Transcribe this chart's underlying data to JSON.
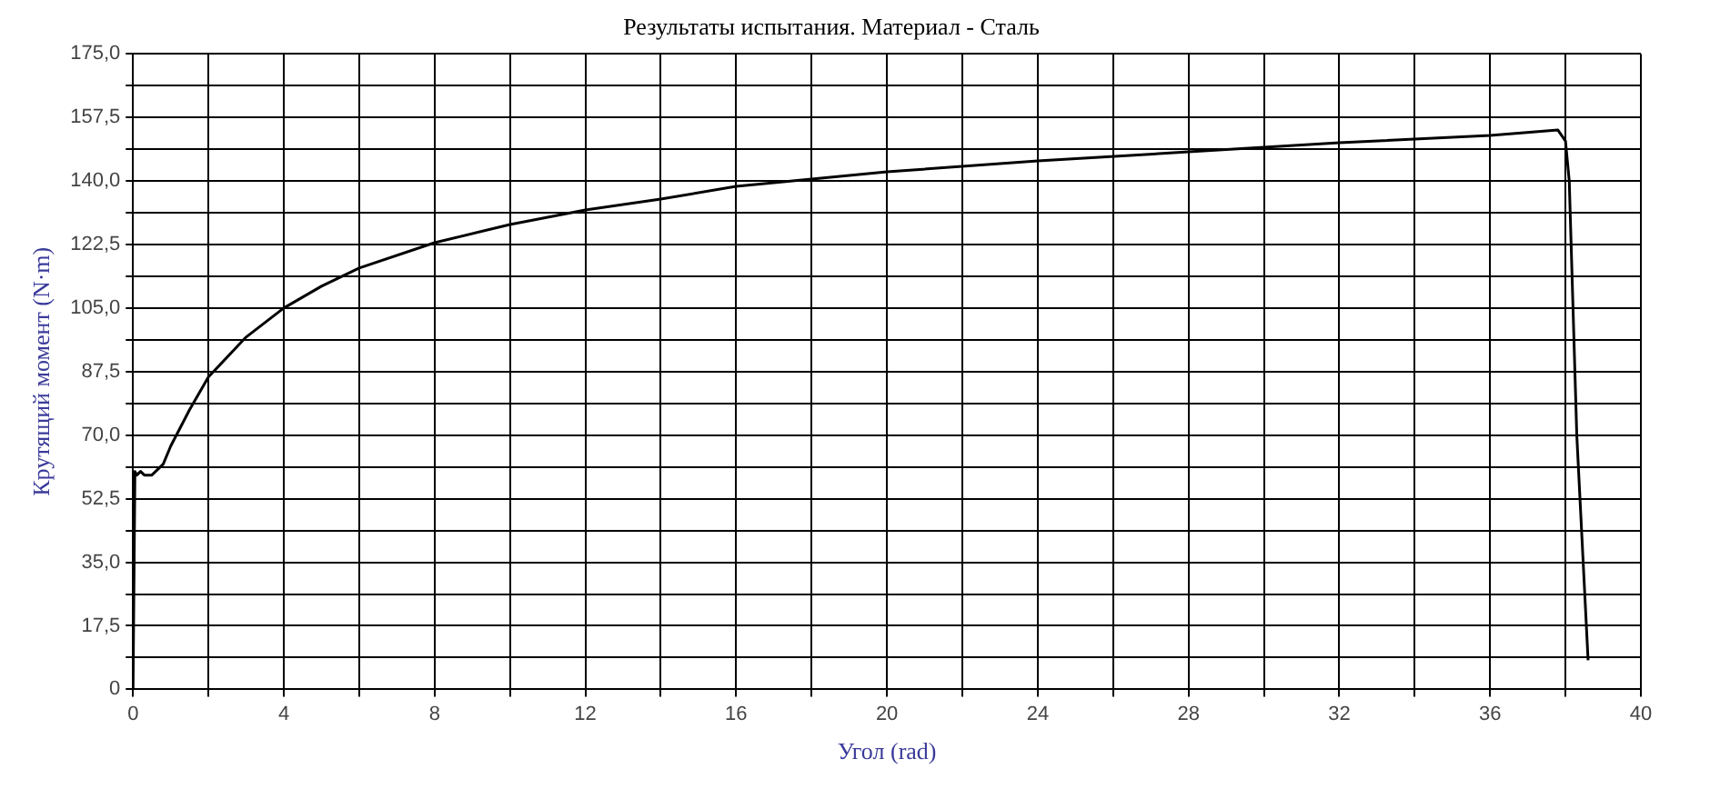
{
  "chart_data": {
    "type": "line",
    "title": "Результаты испытания. Материал - Сталь",
    "xlabel": "Угол (rad)",
    "ylabel": "Крутящий момент (N·m)",
    "series": [
      {
        "color": "#000000",
        "x": [
          0,
          0.05,
          0.1,
          0.2,
          0.3,
          0.5,
          0.8,
          1,
          1.5,
          2,
          3,
          4,
          5,
          6,
          8,
          10,
          12,
          14,
          16,
          18,
          20,
          24,
          28,
          32,
          36,
          37.8,
          38,
          38.1,
          38.3,
          38.6
        ],
        "values": [
          0,
          60,
          59,
          60,
          59,
          59,
          62,
          67,
          77,
          86,
          97,
          105,
          111,
          116,
          123,
          128,
          132,
          135,
          138.5,
          140.5,
          142.5,
          145.5,
          148,
          150.5,
          152.5,
          154,
          151,
          140,
          70,
          8
        ]
      }
    ],
    "xlim": [
      0,
      40
    ],
    "ylim": [
      0,
      175
    ],
    "xticks": [
      0,
      {
        "value": 2,
        "label": null
      },
      4,
      {
        "value": 6,
        "label": null
      },
      8,
      {
        "value": 10,
        "label": null
      },
      12,
      {
        "value": 14,
        "label": null
      },
      16,
      {
        "value": 18,
        "label": null
      },
      20,
      {
        "value": 22,
        "label": null
      },
      24,
      {
        "value": 26,
        "label": null
      },
      28,
      {
        "value": 30,
        "label": null
      },
      32,
      {
        "value": 34,
        "label": null
      },
      36,
      {
        "value": 38,
        "label": null
      },
      40
    ],
    "yticks": [
      0,
      {
        "value": 8.75,
        "label": null
      },
      {
        "value": 17.5,
        "label": "17,5"
      },
      {
        "value": 26.25,
        "label": null
      },
      {
        "value": 35,
        "label": "35,0"
      },
      {
        "value": 43.75,
        "label": null
      },
      {
        "value": 52.5,
        "label": "52,5"
      },
      {
        "value": 61.25,
        "label": null
      },
      {
        "value": 70,
        "label": "70,0"
      },
      {
        "value": 78.75,
        "label": null
      },
      {
        "value": 87.5,
        "label": "87,5"
      },
      {
        "value": 96.25,
        "label": null
      },
      {
        "value": 105,
        "label": "105,0"
      },
      {
        "value": 113.75,
        "label": null
      },
      {
        "value": 122.5,
        "label": "122,5"
      },
      {
        "value": 131.25,
        "label": null
      },
      {
        "value": 140,
        "label": "140,0"
      },
      {
        "value": 148.75,
        "label": null
      },
      {
        "value": 157.5,
        "label": "157,5"
      },
      {
        "value": 166.25,
        "label": null
      },
      {
        "value": 175,
        "label": "175,0"
      }
    ],
    "grid": true,
    "marker": "none",
    "line_style": "solid"
  }
}
